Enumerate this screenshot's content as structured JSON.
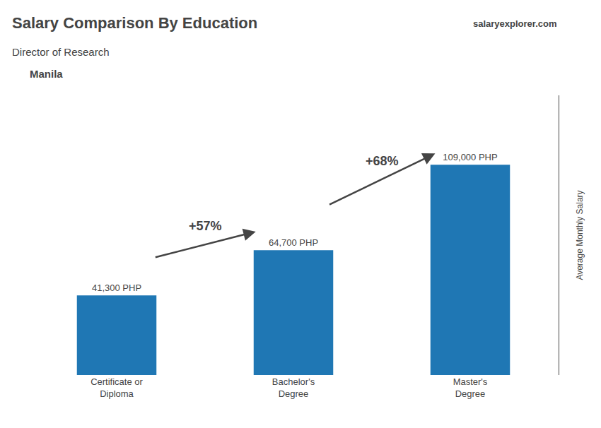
{
  "chart_data": {
    "type": "bar",
    "title": "Salary Comparison By Education",
    "subtitle": "Director of Research",
    "annotations": [
      "Manila",
      "salaryexplorer.com"
    ],
    "ylabel": "Average Monthly Salary",
    "categories": [
      "Certificate or\nDiploma",
      "Bachelor's\nDegree",
      "Master's\nDegree"
    ],
    "values": [
      41300,
      64700,
      109000
    ],
    "value_labels": [
      "41,300 PHP",
      "64,700 PHP",
      "109,000 PHP"
    ],
    "data_labels": true,
    "change_labels": [
      "+57%",
      "+68%"
    ],
    "ylim": [
      0,
      145000
    ],
    "grid": false,
    "tick_labels": "x"
  }
}
